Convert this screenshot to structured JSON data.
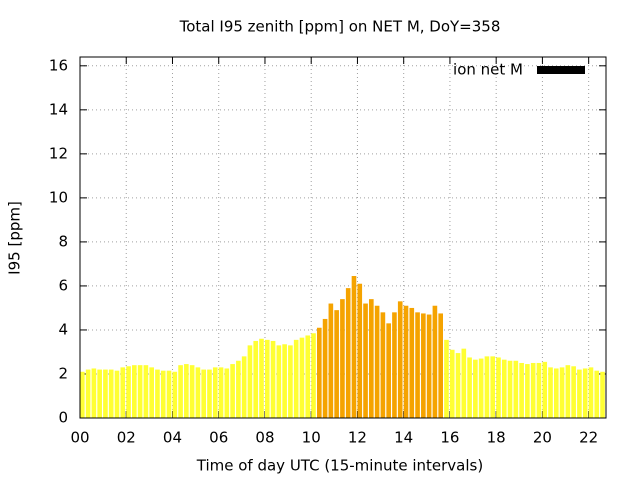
{
  "chart_data": {
    "type": "bar",
    "title": "Total I95 zenith [ppm] on NET M, DoY=358",
    "x_label": "Time of day UTC (15-minute intervals)",
    "y_label": "I95 [ppm]",
    "xlim": [
      0,
      22.75
    ],
    "ylim": [
      0,
      16.4
    ],
    "xticks": [
      {
        "value": 0,
        "label": "00"
      },
      {
        "value": 2,
        "label": "02"
      },
      {
        "value": 4,
        "label": "04"
      },
      {
        "value": 6,
        "label": "06"
      },
      {
        "value": 8,
        "label": "08"
      },
      10,
      12,
      14,
      16,
      18,
      20,
      22
    ],
    "yticks": [
      0,
      2,
      4,
      6,
      8,
      10,
      12,
      14,
      16
    ],
    "grid": true,
    "legend": "top-right",
    "x": [
      0,
      0.25,
      0.5,
      0.75,
      1,
      1.25,
      1.5,
      1.75,
      2,
      2.25,
      2.5,
      2.75,
      3,
      3.25,
      3.5,
      3.75,
      4,
      4.25,
      4.5,
      4.75,
      5,
      5.25,
      5.5,
      5.75,
      6,
      6.25,
      6.5,
      6.75,
      7,
      7.25,
      7.5,
      7.75,
      8,
      8.25,
      8.5,
      8.75,
      9,
      9.25,
      9.5,
      9.75,
      10,
      10.25,
      10.5,
      10.75,
      11,
      11.25,
      11.5,
      11.75,
      12,
      12.25,
      12.5,
      12.75,
      13,
      13.25,
      13.5,
      13.75,
      14,
      14.25,
      14.5,
      14.75,
      15,
      15.25,
      15.5,
      15.75,
      16,
      16.25,
      16.5,
      16.75,
      17,
      17.25,
      17.5,
      17.75,
      18,
      18.25,
      18.5,
      18.75,
      19,
      19.25,
      19.5,
      19.75,
      20,
      20.25,
      20.5,
      20.75,
      21,
      21.25,
      21.5,
      21.75,
      22,
      22.25,
      22.5
    ],
    "series": [
      {
        "name": "ion net M",
        "color": "#000000",
        "values": [
          2.1,
          2.2,
          2.25,
          2.2,
          2.2,
          2.2,
          2.15,
          2.3,
          2.35,
          2.4,
          2.4,
          2.4,
          2.3,
          2.2,
          2.15,
          2.15,
          2.1,
          2.4,
          2.45,
          2.4,
          2.3,
          2.2,
          2.2,
          2.3,
          2.3,
          2.25,
          2.45,
          2.6,
          2.8,
          3.3,
          3.5,
          3.6,
          3.55,
          3.5,
          3.3,
          3.35,
          3.3,
          3.55,
          3.65,
          3.75,
          3.85,
          4.1,
          4.5,
          5.2,
          4.9,
          5.4,
          5.9,
          6.45,
          6.1,
          5.2,
          5.4,
          5.1,
          4.8,
          4.3,
          4.8,
          5.3,
          5.1,
          5.0,
          4.8,
          4.75,
          4.7,
          5.1,
          4.75,
          3.55,
          3.1,
          2.95,
          3.15,
          2.75,
          2.65,
          2.7,
          2.8,
          2.8,
          2.75,
          2.65,
          2.6,
          2.6,
          2.5,
          2.45,
          2.5,
          2.5,
          2.55,
          2.3,
          2.25,
          2.3,
          2.4,
          2.35,
          2.2,
          2.25,
          2.3,
          2.15,
          2.1
        ],
        "bar_colors": [
          "#ffff33",
          "#ffff33",
          "#ffff33",
          "#ffff33",
          "#ffff33",
          "#ffff33",
          "#ffff33",
          "#ffff33",
          "#ffff33",
          "#ffff33",
          "#ffff33",
          "#ffff33",
          "#ffff33",
          "#ffff33",
          "#ffff33",
          "#ffff33",
          "#ffff33",
          "#ffff33",
          "#ffff33",
          "#ffff33",
          "#ffff33",
          "#ffff33",
          "#ffff33",
          "#ffff33",
          "#ffff33",
          "#ffff33",
          "#ffff33",
          "#ffff33",
          "#ffff33",
          "#ffff33",
          "#ffff33",
          "#ffff33",
          "#ffff33",
          "#ffff33",
          "#ffff33",
          "#ffff33",
          "#ffff33",
          "#ffff33",
          "#ffff33",
          "#ffff33",
          "#ffff33",
          "#f5a300",
          "#f5a300",
          "#f5a300",
          "#f5a300",
          "#f5a300",
          "#f5a300",
          "#f5a300",
          "#f5a300",
          "#f5a300",
          "#f5a300",
          "#f5a300",
          "#f5a300",
          "#f5a300",
          "#f5a300",
          "#f5a300",
          "#f5a300",
          "#f5a300",
          "#f5a300",
          "#f5a300",
          "#f5a300",
          "#f5a300",
          "#f5a300",
          "#ffff33",
          "#ffff33",
          "#ffff33",
          "#ffff33",
          "#ffff33",
          "#ffff33",
          "#ffff33",
          "#ffff33",
          "#ffff33",
          "#ffff33",
          "#ffff33",
          "#ffff33",
          "#ffff33",
          "#ffff33",
          "#ffff33",
          "#ffff33",
          "#ffff33",
          "#ffff33",
          "#ffff33",
          "#ffff33",
          "#ffff33",
          "#ffff33",
          "#ffff33",
          "#ffff33",
          "#ffff33",
          "#ffff33",
          "#ffff33",
          "#ffff33"
        ]
      }
    ]
  }
}
